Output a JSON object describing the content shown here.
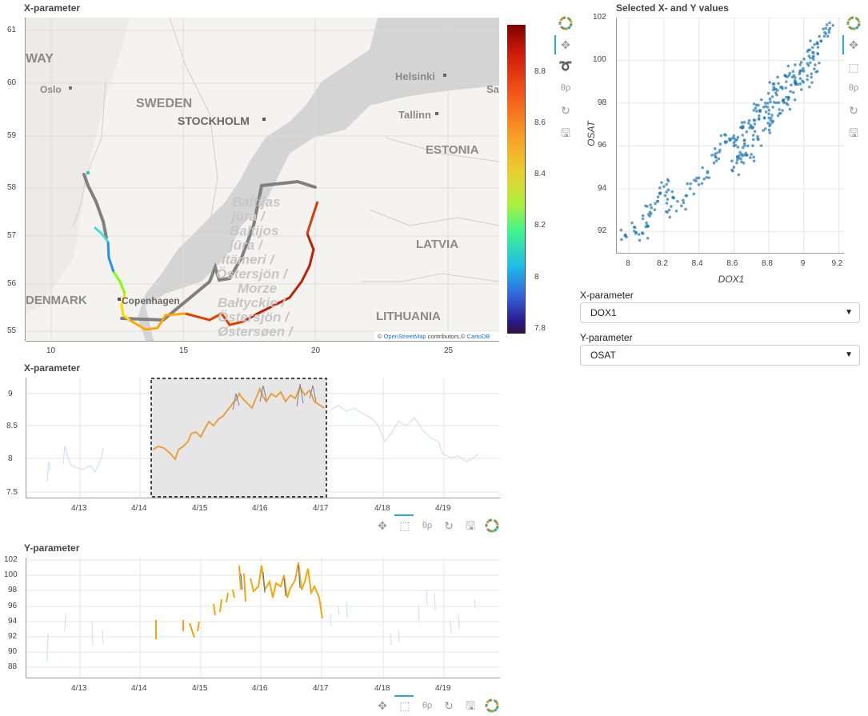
{
  "map_panel": {
    "title": "X-parameter",
    "x_ticks": [
      "10",
      "15",
      "20",
      "25"
    ],
    "y_ticks": [
      "61",
      "60",
      "59",
      "58",
      "57",
      "56",
      "55"
    ],
    "places": [
      {
        "name": "WAY"
      },
      {
        "name": "Oslo"
      },
      {
        "name": "SWEDEN"
      },
      {
        "name": "STOCKHOLM"
      },
      {
        "name": "Helsinki"
      },
      {
        "name": "Sa"
      },
      {
        "name": "Tallinn"
      },
      {
        "name": "ESTONIA"
      },
      {
        "name": "LATVIA"
      },
      {
        "name": "LITHUANIA"
      },
      {
        "name": "DENMARK"
      },
      {
        "name": "Copenhagen"
      }
    ],
    "sea_names": [
      "Baltijas",
      "jūra /",
      "Baltijos",
      "jūra /",
      "Itämeri /",
      "Östersjön /",
      "Morze",
      "Bałtyckie /",
      "Östersjön /",
      "Østersøen /"
    ],
    "attribution_prefix": "© ",
    "attribution_link1": "OpenStreetMap",
    "attribution_mid": " contributors,© ",
    "attribution_link2": "CartoDB",
    "colorbar_ticks": [
      "8.8",
      "8.6",
      "8.4",
      "8.2",
      "8",
      "7.8"
    ]
  },
  "scatter_panel": {
    "title": "Selected X- and Y values",
    "xlabel": "DOX1",
    "ylabel": "OSAT",
    "x_ticks": [
      "8",
      "8.2",
      "8.4",
      "8.6",
      "8.8",
      "9",
      "9.2"
    ],
    "y_ticks": [
      "102",
      "100",
      "98",
      "96",
      "94",
      "92"
    ]
  },
  "controls": {
    "x_label": "X-parameter",
    "x_value": "DOX1",
    "y_label": "Y-parameter",
    "y_value": "OSAT"
  },
  "ts_x": {
    "title": "X-parameter",
    "y_ticks": [
      "9",
      "8.5",
      "8",
      "7.5"
    ],
    "x_ticks": [
      "4/13",
      "4/14",
      "4/15",
      "4/16",
      "4/17",
      "4/18",
      "4/19"
    ]
  },
  "ts_y": {
    "title": "Y-parameter",
    "y_ticks": [
      "102",
      "100",
      "98",
      "96",
      "94",
      "92",
      "90",
      "88"
    ],
    "x_ticks": [
      "4/13",
      "4/14",
      "4/15",
      "4/16",
      "4/17",
      "4/18",
      "4/19"
    ]
  },
  "toolbar_icons": [
    "bokeh-logo-icon",
    "pan-icon",
    "lasso-icon",
    "wheel-zoom-icon",
    "reset-icon",
    "save-icon",
    "box-select-icon"
  ],
  "colors": {
    "selected": "#f0a830",
    "unselected": "#cfe2f3",
    "scatter": "#1f77b4",
    "route_gray": "#808080"
  },
  "chart_data": [
    {
      "type": "scatter",
      "title": "Selected X- and Y values",
      "xlabel": "DOX1",
      "ylabel": "OSAT",
      "xlim": [
        7.93,
        9.23
      ],
      "ylim": [
        91,
        102
      ],
      "points": [
        [
          7.98,
          91.8
        ],
        [
          8.03,
          92.2
        ],
        [
          8.08,
          91.9
        ],
        [
          8.1,
          92.4
        ],
        [
          8.12,
          92.9
        ],
        [
          8.15,
          93.3
        ],
        [
          8.18,
          93.8
        ],
        [
          8.2,
          94.1
        ],
        [
          8.23,
          93.0
        ],
        [
          8.25,
          93.6
        ],
        [
          8.3,
          93.2
        ],
        [
          8.35,
          94.0
        ],
        [
          8.4,
          94.5
        ],
        [
          8.45,
          94.8
        ],
        [
          8.5,
          95.3
        ],
        [
          8.52,
          95.8
        ],
        [
          8.55,
          96.2
        ],
        [
          8.6,
          96.0
        ],
        [
          8.62,
          95.5
        ],
        [
          8.65,
          96.5
        ],
        [
          8.68,
          96.0
        ],
        [
          8.7,
          96.9
        ],
        [
          8.72,
          97.2
        ],
        [
          8.75,
          97.6
        ],
        [
          8.78,
          98.0
        ],
        [
          8.8,
          97.5
        ],
        [
          8.82,
          98.3
        ],
        [
          8.85,
          98.6
        ],
        [
          8.88,
          98.1
        ],
        [
          8.9,
          99.0
        ],
        [
          8.92,
          99.4
        ],
        [
          8.95,
          99.2
        ],
        [
          8.98,
          99.8
        ],
        [
          9.0,
          99.5
        ],
        [
          9.03,
          100.2
        ],
        [
          9.05,
          100.6
        ],
        [
          9.08,
          100.3
        ],
        [
          9.1,
          100.9
        ],
        [
          9.12,
          101.3
        ],
        [
          9.15,
          101.5
        ],
        [
          8.7,
          95.6
        ],
        [
          8.74,
          96.3
        ],
        [
          8.78,
          96.8
        ],
        [
          8.82,
          97.1
        ],
        [
          8.86,
          97.7
        ],
        [
          8.9,
          98.0
        ],
        [
          8.94,
          98.5
        ],
        [
          8.98,
          98.9
        ],
        [
          9.02,
          99.1
        ],
        [
          9.06,
          99.6
        ],
        [
          8.6,
          95.0
        ],
        [
          8.64,
          95.4
        ],
        [
          8.58,
          96.3
        ],
        [
          8.66,
          97.1
        ],
        [
          8.74,
          97.9
        ],
        [
          8.83,
          98.9
        ]
      ]
    },
    {
      "type": "line",
      "title": "X-parameter",
      "x_ticks": [
        "4/13",
        "4/14",
        "4/15",
        "4/16",
        "4/17",
        "4/18",
        "4/19"
      ],
      "ylim": [
        7.45,
        9.25
      ],
      "selected_range": [
        "4/14",
        "4/17"
      ],
      "series": [
        {
          "points": [
            [
              "4/13",
              7.9
            ],
            [
              "4/14",
              8.1
            ],
            [
              "4/15",
              8.2
            ],
            [
              "4/15",
              8.4
            ],
            [
              "4/16",
              8.6
            ],
            [
              "4/16",
              8.8
            ],
            [
              "4/17",
              8.8
            ],
            [
              "4/18",
              8.6
            ],
            [
              "4/19",
              8.1
            ]
          ]
        }
      ]
    },
    {
      "type": "line",
      "title": "Y-parameter",
      "x_ticks": [
        "4/13",
        "4/14",
        "4/15",
        "4/16",
        "4/17",
        "4/18",
        "4/19"
      ],
      "ylim": [
        87.5,
        102.5
      ],
      "series": [
        {
          "points": [
            [
              "4/13",
              92
            ],
            [
              "4/14",
              93
            ],
            [
              "4/15",
              95
            ],
            [
              "4/16",
              98
            ],
            [
              "4/17",
              96
            ],
            [
              "4/18",
              92
            ],
            [
              "4/19",
              95
            ]
          ]
        }
      ]
    }
  ]
}
